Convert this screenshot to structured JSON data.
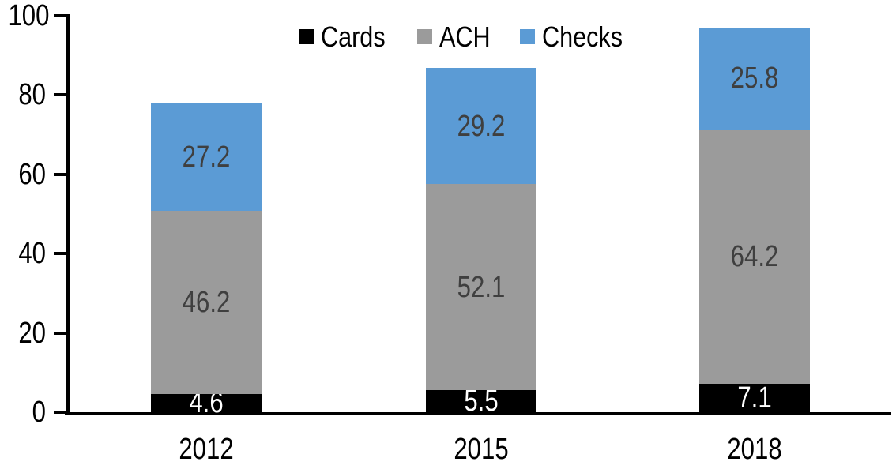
{
  "chart_data": {
    "type": "bar",
    "stacked": true,
    "categories": [
      "2012",
      "2015",
      "2018"
    ],
    "series": [
      {
        "name": "Cards",
        "color": "#000000",
        "label_color": "#ffffff",
        "values": [
          4.6,
          5.5,
          7.1
        ]
      },
      {
        "name": "ACH",
        "color": "#9b9b9b",
        "label_color": "#3f3f3f",
        "values": [
          46.2,
          52.1,
          64.2
        ]
      },
      {
        "name": "Checks",
        "color": "#5b9bd5",
        "label_color": "#3f3f3f",
        "values": [
          27.2,
          29.2,
          25.8
        ]
      }
    ],
    "y_axis": {
      "min": 0,
      "max": 100,
      "tick_interval": 20,
      "ticks": [
        0,
        20,
        40,
        60,
        80,
        100
      ]
    },
    "x_axis": {
      "labels": [
        "2012",
        "2015",
        "2018"
      ]
    },
    "legend": {
      "position": "top",
      "entries": [
        "Cards",
        "ACH",
        "Checks"
      ]
    },
    "grid": "off",
    "axis_color": "#000000",
    "background_color": "#ffffff",
    "data_label_decimals": 1
  }
}
